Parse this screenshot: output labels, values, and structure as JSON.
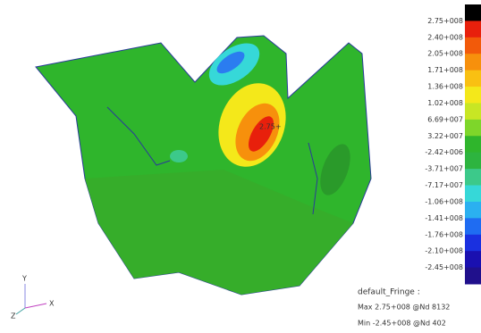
{
  "legend": {
    "labels": [
      "2.75+008",
      "2.40+008",
      "2.05+008",
      "1.71+008",
      "1.36+008",
      "1.02+008",
      "6.69+007",
      "3.22+007",
      "-2.42+006",
      "-3.71+007",
      "-7.17+007",
      "-1.06+008",
      "-1.41+008",
      "-1.76+008",
      "-2.10+008",
      "-2.45+008"
    ],
    "colors": [
      "#000000",
      "#e8200c",
      "#f25a0a",
      "#f7900c",
      "#f9c012",
      "#f4e81a",
      "#c8e624",
      "#7ed62a",
      "#2fb52c",
      "#2db43f",
      "#3cc98a",
      "#36d8d8",
      "#2bb0f0",
      "#1f6cf2",
      "#1a30e0",
      "#1a10b0",
      "#20108c"
    ]
  },
  "annotation": {
    "peak_label": "2.75+"
  },
  "info": {
    "title": "default_Fringe :",
    "max": "Max 2.75+008 @Nd 8132",
    "min": "Min -2.45+008 @Nd 402"
  },
  "triad": {
    "y": "Y",
    "x": "X",
    "z": "Z"
  }
}
